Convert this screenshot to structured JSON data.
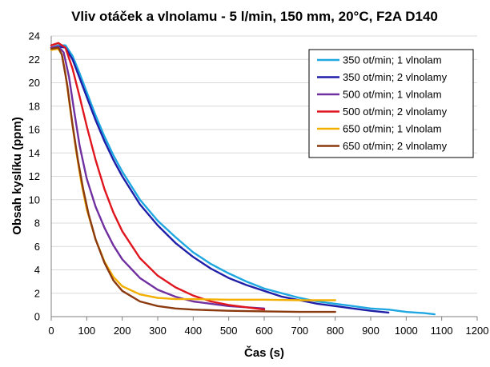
{
  "chart_data": {
    "type": "line",
    "title": "Vliv otáček a vlnolamu - 5 l/min, 150 mm, 20°C, F2A D140",
    "xlabel": "Čas (s)",
    "ylabel": "Obsah kyslíku (ppm)",
    "xlim": [
      0,
      1200
    ],
    "ylim": [
      0,
      24
    ],
    "x_ticks": [
      0,
      100,
      200,
      300,
      400,
      500,
      600,
      700,
      800,
      900,
      1000,
      1100,
      1200
    ],
    "y_ticks": [
      0,
      2,
      4,
      6,
      8,
      10,
      12,
      14,
      16,
      18,
      20,
      22,
      24
    ],
    "grid": "horizontal",
    "legend_position": "top-right",
    "series": [
      {
        "name": "350 ot/min; 1 vlnolam",
        "color": "#1ea7e1",
        "points": [
          [
            0,
            23.0
          ],
          [
            20,
            23.2
          ],
          [
            40,
            23.2
          ],
          [
            60,
            22.3
          ],
          [
            80,
            20.8
          ],
          [
            100,
            19.2
          ],
          [
            125,
            17.2
          ],
          [
            150,
            15.4
          ],
          [
            175,
            13.8
          ],
          [
            200,
            12.4
          ],
          [
            250,
            10.0
          ],
          [
            300,
            8.2
          ],
          [
            350,
            6.8
          ],
          [
            400,
            5.5
          ],
          [
            450,
            4.5
          ],
          [
            500,
            3.7
          ],
          [
            550,
            3.0
          ],
          [
            600,
            2.4
          ],
          [
            650,
            2.0
          ],
          [
            700,
            1.6
          ],
          [
            750,
            1.3
          ],
          [
            800,
            1.1
          ],
          [
            850,
            0.9
          ],
          [
            900,
            0.7
          ],
          [
            950,
            0.6
          ],
          [
            1000,
            0.4
          ],
          [
            1050,
            0.3
          ],
          [
            1080,
            0.2
          ]
        ]
      },
      {
        "name": "350 ot/min; 2 vlnolamy",
        "color": "#1f1fa8",
        "points": [
          [
            0,
            23.0
          ],
          [
            20,
            23.1
          ],
          [
            40,
            23.0
          ],
          [
            60,
            22.0
          ],
          [
            80,
            20.4
          ],
          [
            100,
            18.8
          ],
          [
            125,
            16.8
          ],
          [
            150,
            15.0
          ],
          [
            175,
            13.4
          ],
          [
            200,
            12.0
          ],
          [
            250,
            9.6
          ],
          [
            300,
            7.8
          ],
          [
            350,
            6.3
          ],
          [
            400,
            5.1
          ],
          [
            450,
            4.1
          ],
          [
            500,
            3.3
          ],
          [
            550,
            2.7
          ],
          [
            600,
            2.2
          ],
          [
            650,
            1.7
          ],
          [
            700,
            1.4
          ],
          [
            750,
            1.1
          ],
          [
            800,
            0.9
          ],
          [
            850,
            0.7
          ],
          [
            900,
            0.5
          ],
          [
            950,
            0.35
          ]
        ]
      },
      {
        "name": "500 ot/min; 1 vlnolam",
        "color": "#7030a0",
        "points": [
          [
            0,
            23.0
          ],
          [
            20,
            23.1
          ],
          [
            35,
            22.6
          ],
          [
            50,
            20.5
          ],
          [
            65,
            17.5
          ],
          [
            80,
            14.6
          ],
          [
            100,
            11.8
          ],
          [
            125,
            9.4
          ],
          [
            150,
            7.6
          ],
          [
            175,
            6.1
          ],
          [
            200,
            4.9
          ],
          [
            250,
            3.3
          ],
          [
            300,
            2.3
          ],
          [
            350,
            1.7
          ],
          [
            400,
            1.3
          ],
          [
            450,
            1.1
          ],
          [
            500,
            0.9
          ],
          [
            550,
            0.8
          ],
          [
            600,
            0.7
          ]
        ]
      },
      {
        "name": "500 ot/min; 2 vlnolamy",
        "color": "#e0161e",
        "points": [
          [
            0,
            23.2
          ],
          [
            20,
            23.4
          ],
          [
            40,
            23.0
          ],
          [
            60,
            21.2
          ],
          [
            80,
            18.8
          ],
          [
            100,
            16.3
          ],
          [
            125,
            13.4
          ],
          [
            150,
            10.9
          ],
          [
            175,
            8.9
          ],
          [
            200,
            7.3
          ],
          [
            250,
            5.0
          ],
          [
            300,
            3.5
          ],
          [
            350,
            2.5
          ],
          [
            400,
            1.8
          ],
          [
            450,
            1.3
          ],
          [
            500,
            1.0
          ],
          [
            550,
            0.8
          ],
          [
            600,
            0.6
          ]
        ]
      },
      {
        "name": "650 ot/min; 1 vlnolam",
        "color": "#f4b000",
        "points": [
          [
            0,
            22.8
          ],
          [
            20,
            22.9
          ],
          [
            30,
            22.4
          ],
          [
            40,
            20.8
          ],
          [
            55,
            17.4
          ],
          [
            70,
            14.2
          ],
          [
            85,
            11.4
          ],
          [
            100,
            9.2
          ],
          [
            125,
            6.6
          ],
          [
            150,
            4.7
          ],
          [
            175,
            3.4
          ],
          [
            200,
            2.6
          ],
          [
            250,
            1.9
          ],
          [
            300,
            1.6
          ],
          [
            350,
            1.5
          ],
          [
            400,
            1.5
          ],
          [
            500,
            1.45
          ],
          [
            600,
            1.45
          ],
          [
            700,
            1.4
          ],
          [
            800,
            1.4
          ]
        ]
      },
      {
        "name": "650 ot/min; 2 vlnolamy",
        "color": "#8b3a0f",
        "points": [
          [
            0,
            22.9
          ],
          [
            20,
            23.0
          ],
          [
            30,
            22.4
          ],
          [
            45,
            19.8
          ],
          [
            60,
            16.4
          ],
          [
            75,
            13.4
          ],
          [
            90,
            10.9
          ],
          [
            105,
            8.8
          ],
          [
            125,
            6.6
          ],
          [
            150,
            4.6
          ],
          [
            175,
            3.1
          ],
          [
            200,
            2.2
          ],
          [
            250,
            1.3
          ],
          [
            300,
            0.9
          ],
          [
            350,
            0.7
          ],
          [
            400,
            0.6
          ],
          [
            500,
            0.5
          ],
          [
            600,
            0.45
          ],
          [
            700,
            0.4
          ],
          [
            800,
            0.4
          ]
        ]
      }
    ]
  }
}
